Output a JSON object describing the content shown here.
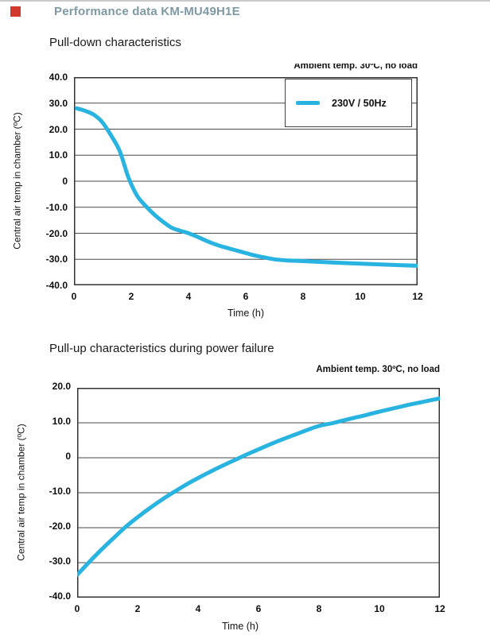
{
  "header": {
    "title": "Performance data KM-MU49H1E",
    "title_color": "#7e99a4",
    "marker_color": "#d2382b"
  },
  "chart_data": [
    {
      "type": "line",
      "title": "Pull-down characteristics",
      "annotation": "Ambient temp. 30ºC, no load",
      "xlabel": "Time (h)",
      "ylabel": "Central air temp in chamber (ºC)",
      "xlim": [
        0,
        12
      ],
      "ylim": [
        -40,
        40
      ],
      "xticks": [
        0,
        2,
        4,
        6,
        8,
        10,
        12
      ],
      "xtick_labels": [
        "0",
        "2",
        "4",
        "6",
        "8",
        "10",
        "12"
      ],
      "yticks": [
        40,
        30,
        20,
        10,
        0,
        -10,
        -20,
        -30,
        -40
      ],
      "ytick_labels": [
        "40.0",
        "30.0",
        "20.0",
        "10.0",
        "0",
        "-10.0",
        "-20.0",
        "-30.0",
        "-40.0"
      ],
      "grid": "horizontal",
      "legend": {
        "label": "230V / 50Hz",
        "position": "top-right"
      },
      "series": [
        {
          "name": "230V / 50Hz",
          "color": "#29b3e0",
          "points": [
            [
              0.1,
              28
            ],
            [
              0.4,
              27
            ],
            [
              0.7,
              25.5
            ],
            [
              1.0,
              22.5
            ],
            [
              1.3,
              17.5
            ],
            [
              1.6,
              11.5
            ],
            [
              1.9,
              1.5
            ],
            [
              2.2,
              -5.5
            ],
            [
              2.5,
              -9.5
            ],
            [
              2.8,
              -12.8
            ],
            [
              3.1,
              -15.5
            ],
            [
              3.4,
              -17.8
            ],
            [
              3.7,
              -19.0
            ],
            [
              4.0,
              -20.0
            ],
            [
              4.3,
              -21.3
            ],
            [
              4.6,
              -22.8
            ],
            [
              5.0,
              -24.5
            ],
            [
              5.4,
              -25.8
            ],
            [
              5.8,
              -27.0
            ],
            [
              6.2,
              -28.2
            ],
            [
              6.6,
              -29.2
            ],
            [
              7.0,
              -30.0
            ],
            [
              7.4,
              -30.4
            ],
            [
              7.8,
              -30.6
            ],
            [
              8.2,
              -30.8
            ],
            [
              9.0,
              -31.2
            ],
            [
              10.0,
              -31.7
            ],
            [
              11.0,
              -32.1
            ],
            [
              12.0,
              -32.5
            ]
          ]
        }
      ]
    },
    {
      "type": "line",
      "title": "Pull-up characteristics during power failure",
      "annotation": "Ambient temp. 30ºC, no load",
      "xlabel": "Time (h)",
      "ylabel": "Central air temp in chamber (ºC)",
      "xlim": [
        0,
        12
      ],
      "ylim": [
        -40,
        20
      ],
      "xticks": [
        0,
        2,
        4,
        6,
        8,
        10,
        12
      ],
      "xtick_labels": [
        "0",
        "2",
        "4",
        "6",
        "8",
        "10",
        "12"
      ],
      "yticks": [
        20,
        10,
        0,
        -10,
        -20,
        -30,
        -40
      ],
      "ytick_labels": [
        "20.0",
        "10.0",
        "0",
        "-10.0",
        "-20.0",
        "-30.0",
        "-40.0"
      ],
      "grid": "horizontal",
      "series": [
        {
          "name": "230V / 50Hz",
          "color": "#29b3e0",
          "points": [
            [
              0.0,
              -33.5
            ],
            [
              0.4,
              -29.8
            ],
            [
              0.8,
              -26.3
            ],
            [
              1.2,
              -23.0
            ],
            [
              1.6,
              -19.8
            ],
            [
              2.0,
              -17.0
            ],
            [
              2.4,
              -14.4
            ],
            [
              2.8,
              -12.0
            ],
            [
              3.2,
              -9.8
            ],
            [
              3.6,
              -7.7
            ],
            [
              4.0,
              -5.8
            ],
            [
              4.4,
              -4.0
            ],
            [
              4.8,
              -2.3
            ],
            [
              5.2,
              -0.7
            ],
            [
              5.6,
              0.9
            ],
            [
              6.0,
              2.4
            ],
            [
              6.4,
              3.9
            ],
            [
              6.8,
              5.3
            ],
            [
              7.2,
              6.6
            ],
            [
              7.6,
              7.9
            ],
            [
              8.0,
              9.1
            ],
            [
              8.5,
              10.0
            ],
            [
              9.0,
              11.1
            ],
            [
              9.5,
              12.1
            ],
            [
              10.0,
              13.2
            ],
            [
              10.5,
              14.2
            ],
            [
              11.0,
              15.2
            ],
            [
              11.5,
              16.1
            ],
            [
              12.0,
              17.0
            ]
          ]
        }
      ]
    }
  ]
}
